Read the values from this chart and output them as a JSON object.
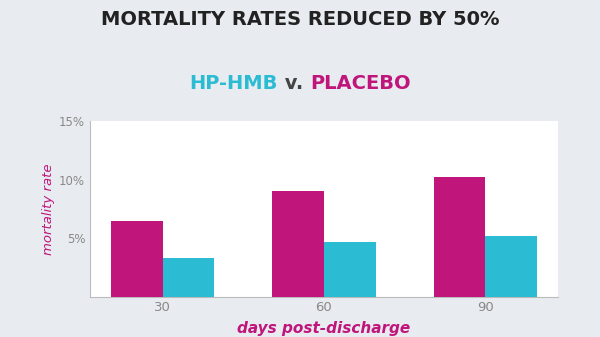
{
  "title_line1": "MORTALITY RATES REDUCED BY 50%",
  "title_line2_parts": [
    {
      "text": "HP-HMB",
      "color": "#2BBCD4"
    },
    {
      "text": " v. ",
      "color": "#444444"
    },
    {
      "text": "PLACEBO",
      "color": "#C0157A"
    }
  ],
  "days": [
    30,
    60,
    90
  ],
  "placebo_values": [
    6.5,
    9.0,
    10.2
  ],
  "hphmb_values": [
    3.3,
    4.7,
    5.2
  ],
  "placebo_color": "#C0157A",
  "hphmb_color": "#2BBCD4",
  "ylabel": "mortality rate",
  "xlabel": "days post-discharge",
  "ylabel_color": "#C0157A",
  "xlabel_color": "#C0157A",
  "yticks": [
    0,
    5,
    10,
    15
  ],
  "ytick_labels": [
    "",
    "5%",
    "10%",
    "15%"
  ],
  "ylim": [
    0,
    15
  ],
  "background_color": "#E8ECF0",
  "plot_bg_color": "#ffffff",
  "bar_width": 0.32,
  "title1_fontsize": 14,
  "title2_fontsize": 14
}
